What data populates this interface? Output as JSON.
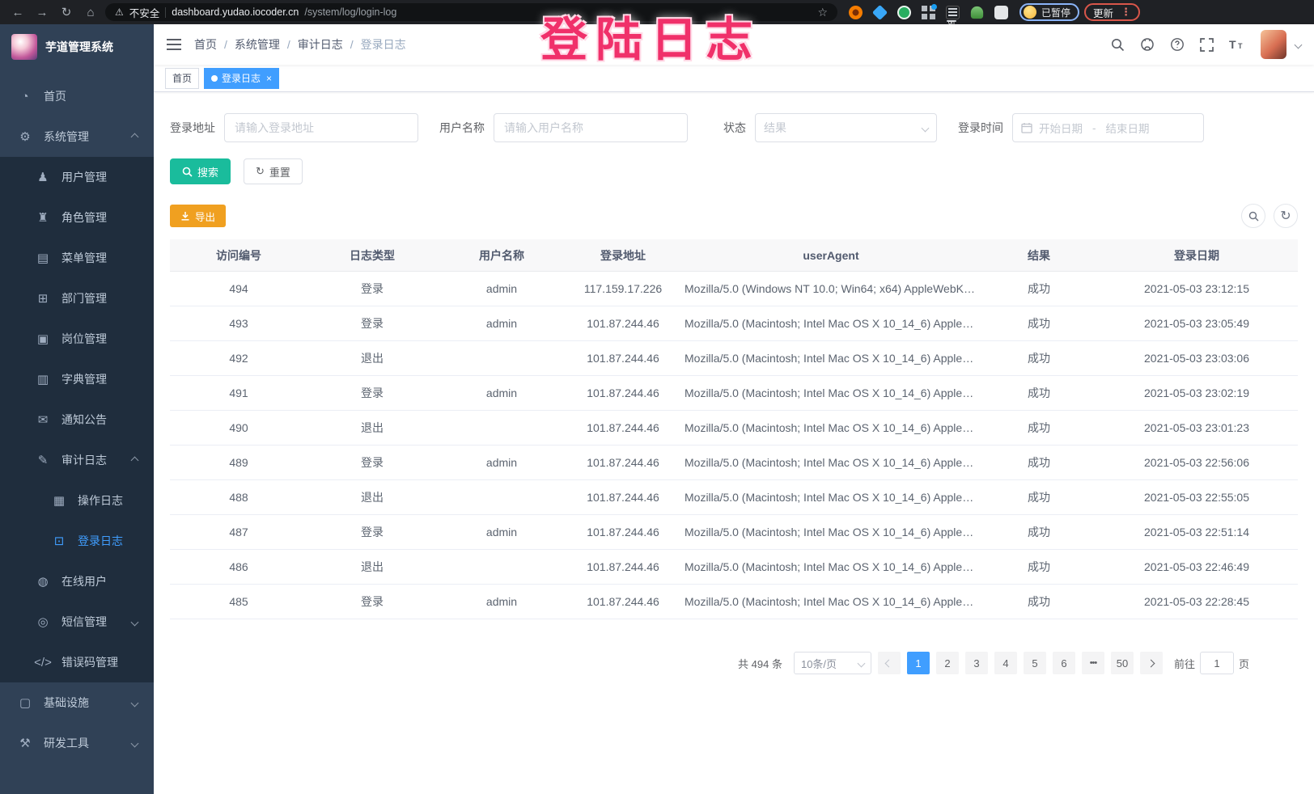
{
  "browser": {
    "security_warning": "不安全",
    "url_domain": "dashboard.yudao.iocoder.cn",
    "url_path": "/system/log/login-log",
    "paused_badge": "已暂停",
    "update_button": "更新",
    "extension_on_badge": "on"
  },
  "watermark": "登陆日志",
  "sidebar": {
    "title": "芋道管理系统",
    "items": [
      {
        "name": "home",
        "label": "首页",
        "icon": "dashboard-icon",
        "level": 0
      },
      {
        "name": "system-management",
        "label": "系统管理",
        "icon": "gear-icon",
        "level": 0,
        "arrow": "up"
      },
      {
        "name": "user-management",
        "label": "用户管理",
        "icon": "user-icon",
        "level": 1
      },
      {
        "name": "role-management",
        "label": "角色管理",
        "icon": "role-icon",
        "level": 1
      },
      {
        "name": "menu-management",
        "label": "菜单管理",
        "icon": "menu-icon",
        "level": 1
      },
      {
        "name": "department-management",
        "label": "部门管理",
        "icon": "department-icon",
        "level": 1
      },
      {
        "name": "post-management",
        "label": "岗位管理",
        "icon": "post-icon",
        "level": 1
      },
      {
        "name": "dictionary-management",
        "label": "字典管理",
        "icon": "dictionary-icon",
        "level": 1
      },
      {
        "name": "notice-announcement",
        "label": "通知公告",
        "icon": "announcement-icon",
        "level": 1
      },
      {
        "name": "audit-log",
        "label": "审计日志",
        "icon": "audit-log-icon",
        "level": 1,
        "arrow": "up"
      },
      {
        "name": "operation-log",
        "label": "操作日志",
        "icon": "operation-log-icon",
        "level": 2
      },
      {
        "name": "login-log",
        "label": "登录日志",
        "icon": "login-log-icon",
        "level": 2,
        "active": true
      },
      {
        "name": "online-users",
        "label": "在线用户",
        "icon": "online-users-icon",
        "level": 1
      },
      {
        "name": "sms-management",
        "label": "短信管理",
        "icon": "sms-icon",
        "level": 1,
        "arrow": "down"
      },
      {
        "name": "error-code-management",
        "label": "错误码管理",
        "icon": "error-code-icon",
        "level": 1
      },
      {
        "name": "infrastructure",
        "label": "基础设施",
        "icon": "infrastructure-icon",
        "level": 0,
        "arrow": "down"
      },
      {
        "name": "dev-tools",
        "label": "研发工具",
        "icon": "devtools-icon",
        "level": 0,
        "arrow": "down"
      }
    ]
  },
  "icons": {
    "dashboard-icon": "◔",
    "gear-icon": "⚙",
    "user-icon": "♟",
    "role-icon": "♜",
    "menu-icon": "▤",
    "department-icon": "⊞",
    "post-icon": "▣",
    "dictionary-icon": "▥",
    "announcement-icon": "✉",
    "audit-log-icon": "✎",
    "operation-log-icon": "▦",
    "login-log-icon": "⊡",
    "online-users-icon": "◍",
    "sms-icon": "◎",
    "error-code-icon": "</>",
    "infrastructure-icon": "▢",
    "devtools-icon": "⚒"
  },
  "breadcrumb": {
    "items": [
      "首页",
      "系统管理",
      "审计日志"
    ],
    "current": "登录日志",
    "separator": "/"
  },
  "tags": [
    {
      "name": "home",
      "label": "首页",
      "active": false,
      "closable": false
    },
    {
      "name": "login-log",
      "label": "登录日志",
      "active": true,
      "closable": true
    }
  ],
  "filters": {
    "login_address_label": "登录地址",
    "login_address_placeholder": "请输入登录地址",
    "username_label": "用户名称",
    "username_placeholder": "请输入用户名称",
    "status_label": "状态",
    "status_placeholder": "结果",
    "login_time_label": "登录时间",
    "date_start_placeholder": "开始日期",
    "date_separator": "-",
    "date_end_placeholder": "结束日期",
    "search_button": "搜索",
    "reset_button": "重置"
  },
  "toolbar": {
    "export_button": "导出"
  },
  "table": {
    "headers": [
      "访问编号",
      "日志类型",
      "用户名称",
      "登录地址",
      "userAgent",
      "结果",
      "登录日期"
    ],
    "rows": [
      {
        "id": "494",
        "type": "登录",
        "user": "admin",
        "ip": "117.159.17.226",
        "userAgent": "Mozilla/5.0 (Windows NT 10.0; Win64; x64) AppleWebKit...",
        "result": "成功",
        "date": "2021-05-03 23:12:15"
      },
      {
        "id": "493",
        "type": "登录",
        "user": "admin",
        "ip": "101.87.244.46",
        "userAgent": "Mozilla/5.0 (Macintosh; Intel Mac OS X 10_14_6) AppleWe...",
        "result": "成功",
        "date": "2021-05-03 23:05:49"
      },
      {
        "id": "492",
        "type": "退出",
        "user": "",
        "ip": "101.87.244.46",
        "userAgent": "Mozilla/5.0 (Macintosh; Intel Mac OS X 10_14_6) AppleWe...",
        "result": "成功",
        "date": "2021-05-03 23:03:06"
      },
      {
        "id": "491",
        "type": "登录",
        "user": "admin",
        "ip": "101.87.244.46",
        "userAgent": "Mozilla/5.0 (Macintosh; Intel Mac OS X 10_14_6) AppleWe...",
        "result": "成功",
        "date": "2021-05-03 23:02:19"
      },
      {
        "id": "490",
        "type": "退出",
        "user": "",
        "ip": "101.87.244.46",
        "userAgent": "Mozilla/5.0 (Macintosh; Intel Mac OS X 10_14_6) AppleWe...",
        "result": "成功",
        "date": "2021-05-03 23:01:23"
      },
      {
        "id": "489",
        "type": "登录",
        "user": "admin",
        "ip": "101.87.244.46",
        "userAgent": "Mozilla/5.0 (Macintosh; Intel Mac OS X 10_14_6) AppleWe...",
        "result": "成功",
        "date": "2021-05-03 22:56:06"
      },
      {
        "id": "488",
        "type": "退出",
        "user": "",
        "ip": "101.87.244.46",
        "userAgent": "Mozilla/5.0 (Macintosh; Intel Mac OS X 10_14_6) AppleWe...",
        "result": "成功",
        "date": "2021-05-03 22:55:05"
      },
      {
        "id": "487",
        "type": "登录",
        "user": "admin",
        "ip": "101.87.244.46",
        "userAgent": "Mozilla/5.0 (Macintosh; Intel Mac OS X 10_14_6) AppleWe...",
        "result": "成功",
        "date": "2021-05-03 22:51:14"
      },
      {
        "id": "486",
        "type": "退出",
        "user": "",
        "ip": "101.87.244.46",
        "userAgent": "Mozilla/5.0 (Macintosh; Intel Mac OS X 10_14_6) AppleWe...",
        "result": "成功",
        "date": "2021-05-03 22:46:49"
      },
      {
        "id": "485",
        "type": "登录",
        "user": "admin",
        "ip": "101.87.244.46",
        "userAgent": "Mozilla/5.0 (Macintosh; Intel Mac OS X 10_14_6) AppleWe...",
        "result": "成功",
        "date": "2021-05-03 22:28:45"
      }
    ]
  },
  "pagination": {
    "total": "共 494 条",
    "page_size": "10条/页",
    "pages": [
      "1",
      "2",
      "3",
      "4",
      "5",
      "6",
      "•••",
      "50"
    ],
    "active_page": "1",
    "goto_label": "前往",
    "goto_value": "1",
    "goto_suffix": "页"
  },
  "colors": {
    "accent": "#409eff",
    "sidebar_bg": "#304156",
    "submenu_bg": "#1f2d3d",
    "search_button": "#1abc9c",
    "export_button": "#f0a020",
    "watermark": "#f0306a",
    "active_tag": "#409eff"
  }
}
